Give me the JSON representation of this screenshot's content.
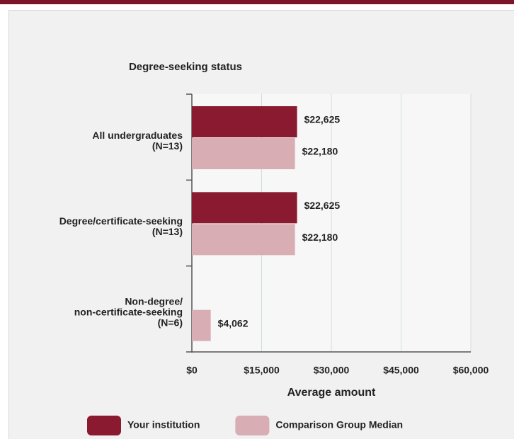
{
  "chart_data": {
    "type": "bar",
    "orientation": "horizontal",
    "title": "Degree-seeking status",
    "xlabel": "Average amount",
    "categories": [
      "All undergraduates\n(N=13)",
      "Degree/certificate-seeking\n(N=13)",
      "Non-degree/\nnon-certificate-seeking\n(N=6)"
    ],
    "series": [
      {
        "name": "Your institution",
        "color": "#8a1a2f",
        "values": [
          22625,
          22625,
          null
        ],
        "value_labels": [
          "$22,625",
          "$22,625",
          null
        ]
      },
      {
        "name": "Comparison Group Median",
        "color": "#d9adb4",
        "values": [
          22180,
          22180,
          4062
        ],
        "value_labels": [
          "$22,180",
          "$22,180",
          "$4,062"
        ]
      }
    ],
    "xlim": [
      0,
      60000
    ],
    "xticks": [
      {
        "value": 0,
        "label": "$0"
      },
      {
        "value": 15000,
        "label": "$15,000"
      },
      {
        "value": 30000,
        "label": "$30,000"
      },
      {
        "value": 45000,
        "label": "$45,000"
      },
      {
        "value": 60000,
        "label": "$60,000"
      }
    ],
    "grid": true,
    "legend": "bottom"
  }
}
